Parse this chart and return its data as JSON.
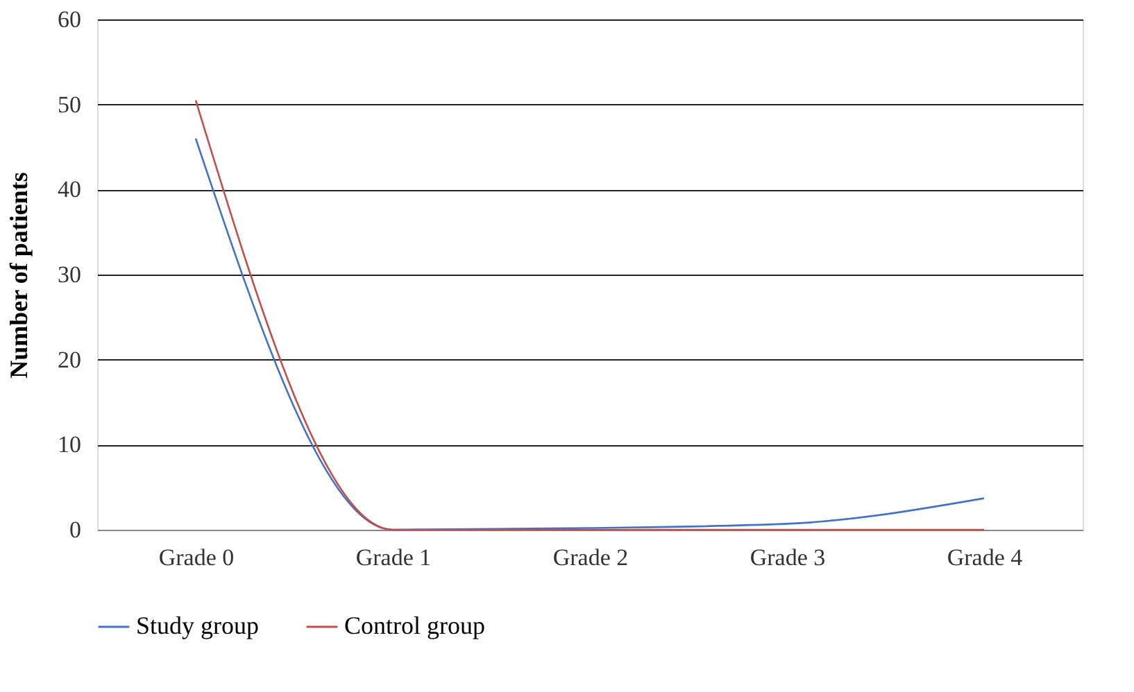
{
  "chart_data": {
    "type": "line",
    "ylabel": "Number of  patients",
    "categories": [
      "Grade 0",
      "Grade 1",
      "Grade 2",
      "Grade 3",
      "Grade 4"
    ],
    "series": [
      {
        "name": "Study group",
        "color": "#4472c4",
        "values": [
          46,
          0,
          0.2,
          0.7,
          3.7
        ]
      },
      {
        "name": "Control group",
        "color": "#c0504d",
        "values": [
          50.5,
          0,
          0,
          0,
          0
        ]
      }
    ],
    "ylim": [
      0,
      60
    ],
    "yticks": [
      0,
      10,
      20,
      30,
      40,
      50,
      60
    ],
    "grid": "y",
    "legend": "bottom",
    "marker": "none",
    "line_style": "solid"
  }
}
